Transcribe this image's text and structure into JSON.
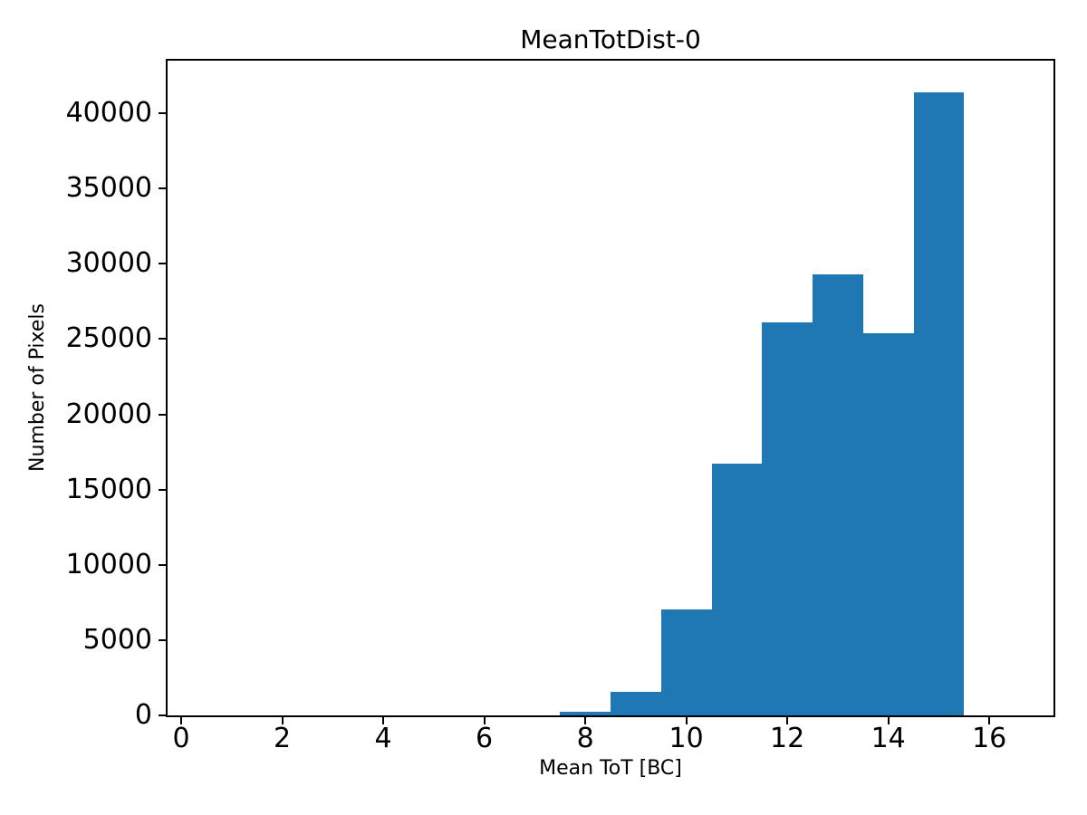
{
  "chart_data": {
    "type": "bar",
    "subtype": "histogram",
    "title": "MeanTotDist-0",
    "xlabel": "Mean ToT [BC]",
    "ylabel": "Number of Pixels",
    "bins": {
      "left_edges": [
        7.5,
        8.5,
        9.5,
        10.5,
        11.5,
        12.5,
        13.5,
        14.5
      ],
      "width": 1
    },
    "values": [
      230,
      1550,
      7050,
      16700,
      26100,
      29300,
      25400,
      41400
    ],
    "xlim": [
      -0.27,
      17.27
    ],
    "ylim": [
      0,
      43500
    ],
    "xticks": [
      0,
      2,
      4,
      6,
      8,
      10,
      12,
      14,
      16
    ],
    "xtick_labels": [
      "0",
      "2",
      "4",
      "6",
      "8",
      "10",
      "12",
      "14",
      "16"
    ],
    "yticks": [
      0,
      5000,
      10000,
      15000,
      20000,
      25000,
      30000,
      35000,
      40000
    ],
    "ytick_labels": [
      "0",
      "5000",
      "10000",
      "15000",
      "20000",
      "25000",
      "30000",
      "35000",
      "40000"
    ],
    "bar_color": "#1f77b4",
    "spine_color": "#000000",
    "background_color": "#ffffff",
    "grid": false,
    "legend": "none"
  }
}
